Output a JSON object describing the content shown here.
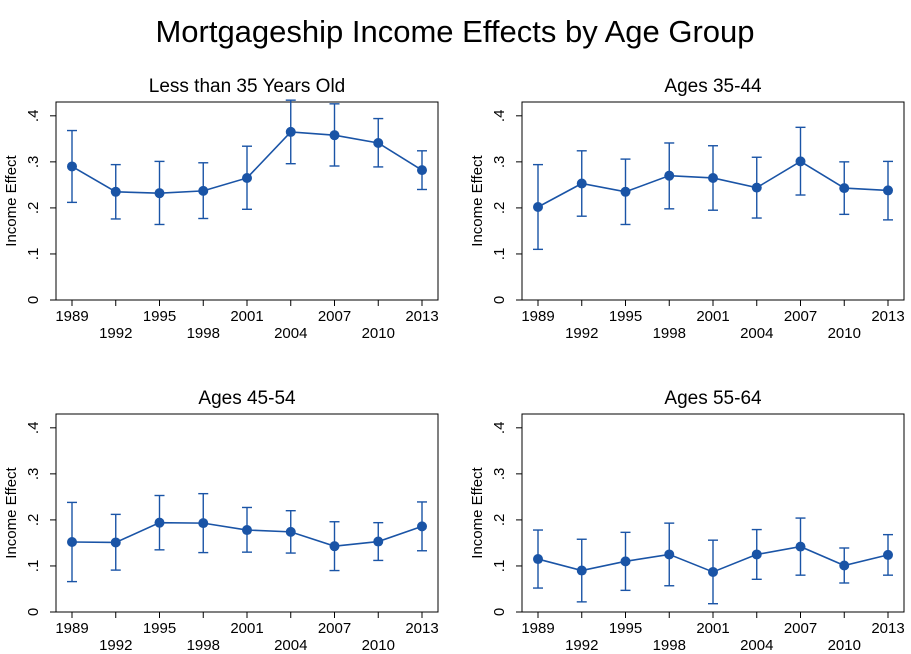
{
  "figure": {
    "title": "Mortgageship Income Effects by Age Group"
  },
  "colors": {
    "series": "#1a54a6",
    "frame": "#000000",
    "background": "#ffffff"
  },
  "chart_data": [
    {
      "type": "line",
      "title": "Less than 35 Years Old",
      "xlabel": "",
      "ylabel": "Income Effect",
      "x": [
        1989,
        1992,
        1995,
        1998,
        2001,
        2004,
        2007,
        2010,
        2013
      ],
      "xticks_top_row": [
        "1989",
        "1995",
        "2001",
        "2007",
        "2013"
      ],
      "xticks_bottom_row": [
        "1992",
        "1998",
        "2004",
        "2010"
      ],
      "yticks": [
        "0",
        ".1",
        ".2",
        ".3",
        ".4"
      ],
      "ylim": [
        0,
        0.43
      ],
      "grid": false,
      "series": [
        {
          "values": [
            0.29,
            0.235,
            0.232,
            0.237,
            0.265,
            0.365,
            0.358,
            0.341,
            0.282
          ],
          "ci_low": [
            0.212,
            0.176,
            0.164,
            0.177,
            0.197,
            0.296,
            0.291,
            0.289,
            0.24
          ],
          "ci_high": [
            0.368,
            0.294,
            0.301,
            0.298,
            0.334,
            0.434,
            0.426,
            0.394,
            0.324
          ]
        }
      ]
    },
    {
      "type": "line",
      "title": "Ages 35-44",
      "xlabel": "",
      "ylabel": "Income Effect",
      "x": [
        1989,
        1992,
        1995,
        1998,
        2001,
        2004,
        2007,
        2010,
        2013
      ],
      "xticks_top_row": [
        "1989",
        "1995",
        "2001",
        "2007",
        "2013"
      ],
      "xticks_bottom_row": [
        "1992",
        "1998",
        "2004",
        "2010"
      ],
      "yticks": [
        "0",
        ".1",
        ".2",
        ".3",
        ".4"
      ],
      "ylim": [
        0,
        0.43
      ],
      "grid": false,
      "series": [
        {
          "values": [
            0.202,
            0.253,
            0.235,
            0.27,
            0.265,
            0.244,
            0.301,
            0.243,
            0.238
          ],
          "ci_low": [
            0.11,
            0.182,
            0.164,
            0.198,
            0.195,
            0.178,
            0.228,
            0.186,
            0.174
          ],
          "ci_high": [
            0.294,
            0.324,
            0.306,
            0.341,
            0.335,
            0.31,
            0.375,
            0.3,
            0.301
          ]
        }
      ]
    },
    {
      "type": "line",
      "title": "Ages 45-54",
      "xlabel": "",
      "ylabel": "Income Effect",
      "x": [
        1989,
        1992,
        1995,
        1998,
        2001,
        2004,
        2007,
        2010,
        2013
      ],
      "xticks_top_row": [
        "1989",
        "1995",
        "2001",
        "2007",
        "2013"
      ],
      "xticks_bottom_row": [
        "1992",
        "1998",
        "2004",
        "2010"
      ],
      "yticks": [
        "0",
        ".1",
        ".2",
        ".3",
        ".4"
      ],
      "ylim": [
        0,
        0.43
      ],
      "grid": false,
      "series": [
        {
          "values": [
            0.152,
            0.151,
            0.194,
            0.193,
            0.178,
            0.174,
            0.143,
            0.153,
            0.186
          ],
          "ci_low": [
            0.066,
            0.091,
            0.135,
            0.129,
            0.13,
            0.128,
            0.09,
            0.112,
            0.133
          ],
          "ci_high": [
            0.238,
            0.212,
            0.253,
            0.257,
            0.227,
            0.22,
            0.196,
            0.194,
            0.239
          ]
        }
      ]
    },
    {
      "type": "line",
      "title": "Ages 55-64",
      "xlabel": "",
      "ylabel": "Income Effect",
      "x": [
        1989,
        1992,
        1995,
        1998,
        2001,
        2004,
        2007,
        2010,
        2013
      ],
      "xticks_top_row": [
        "1989",
        "1995",
        "2001",
        "2007",
        "2013"
      ],
      "xticks_bottom_row": [
        "1992",
        "1998",
        "2004",
        "2010"
      ],
      "yticks": [
        "0",
        ".1",
        ".2",
        ".3",
        ".4"
      ],
      "ylim": [
        0,
        0.43
      ],
      "grid": false,
      "series": [
        {
          "values": [
            0.115,
            0.09,
            0.11,
            0.125,
            0.087,
            0.125,
            0.142,
            0.101,
            0.124
          ],
          "ci_low": [
            0.052,
            0.022,
            0.047,
            0.057,
            0.018,
            0.071,
            0.08,
            0.063,
            0.08
          ],
          "ci_high": [
            0.178,
            0.158,
            0.173,
            0.193,
            0.156,
            0.179,
            0.204,
            0.139,
            0.168
          ]
        }
      ]
    }
  ]
}
